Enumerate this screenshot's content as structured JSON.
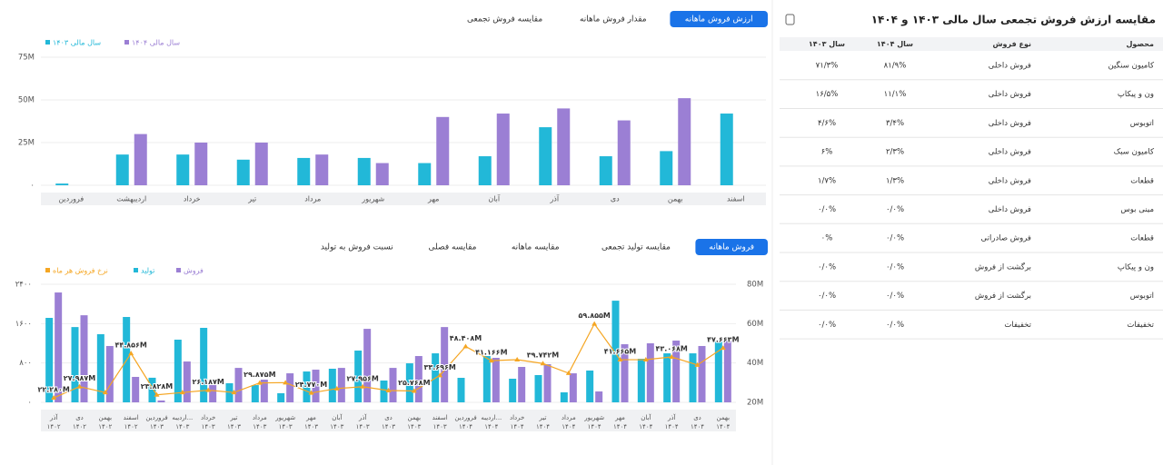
{
  "title": "مقایسه ارزش فروش تجمعی سال مالی ۱۴۰۳ و ۱۴۰۴",
  "top_tabs": [
    "ارزش فروش ماهانه",
    "مقدار فروش ماهانه",
    "مقایسه فروش تجمعی"
  ],
  "bottom_tabs": [
    "فروش ماهانه",
    "مقایسه تولید تجمعی",
    "مقایسه ماهانه",
    "مقایسه فصلی",
    "نسبت فروش به تولید"
  ],
  "table": {
    "header": [
      "محصول",
      "نوع فروش",
      "سال ۱۴۰۴",
      "سال ۱۴۰۳"
    ],
    "rows": [
      [
        "کامیون سنگین",
        "فروش داخلی",
        "۸۱/۹%",
        "۷۱/۳%"
      ],
      [
        "ون و پیکاپ",
        "فروش داخلی",
        "۱۱/۱%",
        "۱۶/۵%"
      ],
      [
        "اتوبوس",
        "فروش داخلی",
        "۳/۴%",
        "۴/۶%"
      ],
      [
        "کامیون سبک",
        "فروش داخلی",
        "۲/۳%",
        "۶%"
      ],
      [
        "قطعات",
        "فروش داخلی",
        "۱/۳%",
        "۱/۷%"
      ],
      [
        "مینی بوس",
        "فروش داخلی",
        "۰/۰%",
        "۰/۰%"
      ],
      [
        "قطعات",
        "فروش صادراتی",
        "۰/۰%",
        "۰%"
      ],
      [
        "ون و پیکاپ",
        "برگشت از فروش",
        "۰/۰%",
        "۰/۰%"
      ],
      [
        "اتوبوس",
        "برگشت از فروش",
        "۰/۰%",
        "۰/۰%"
      ],
      [
        "تخفیفات",
        "تخفیفات",
        "۰/۰%",
        "۰/۰%"
      ]
    ]
  },
  "chart_data": [
    {
      "type": "bar",
      "categories": [
        "فروردین",
        "اردیبهشت",
        "خرداد",
        "تیر",
        "مرداد",
        "شهریور",
        "مهر",
        "آبان",
        "آذر",
        "دی",
        "بهمن",
        "اسفند"
      ],
      "series": [
        {
          "name": "سال مالی ۱۴۰۳",
          "color": "#22b8d8",
          "values": [
            1,
            18,
            18,
            15,
            16,
            16,
            13,
            17,
            34,
            17,
            20,
            42
          ]
        },
        {
          "name": "سال مالی ۱۴۰۴",
          "color": "#9b7fd4",
          "values": [
            0,
            30,
            25,
            25,
            18,
            13,
            40,
            42,
            45,
            38,
            51,
            null
          ]
        }
      ],
      "ylim": [
        0,
        75
      ],
      "yticks": [
        {
          "value": 0,
          "label": "۰"
        },
        {
          "value": 25,
          "label": "25M"
        },
        {
          "value": 50,
          "label": "50M"
        },
        {
          "value": 75,
          "label": "75M"
        }
      ],
      "grid": true
    },
    {
      "type": "combo",
      "categories": [
        [
          "آذر",
          "۱۴۰۲"
        ],
        [
          "دی",
          "۱۴۰۲"
        ],
        [
          "بهمن",
          "۱۴۰۲"
        ],
        [
          "اسفند",
          "۱۴۰۲"
        ],
        [
          "فروردین",
          "۱۴۰۳"
        ],
        [
          "اردیبه...",
          "۱۴۰۳"
        ],
        [
          "خرداد",
          "۱۴۰۳"
        ],
        [
          "تیر",
          "۱۴۰۳"
        ],
        [
          "مرداد",
          "۱۴۰۳"
        ],
        [
          "شهریور",
          "۱۴۰۳"
        ],
        [
          "مهر",
          "۱۴۰۳"
        ],
        [
          "آبان",
          "۱۴۰۳"
        ],
        [
          "آذر",
          "۱۴۰۳"
        ],
        [
          "دی",
          "۱۴۰۳"
        ],
        [
          "بهمن",
          "۱۴۰۳"
        ],
        [
          "اسفند",
          "۱۴۰۳"
        ],
        [
          "فروردین",
          "۱۴۰۴"
        ],
        [
          "اردیبه...",
          "۱۴۰۴"
        ],
        [
          "خرداد",
          "۱۴۰۴"
        ],
        [
          "تیر",
          "۱۴۰۴"
        ],
        [
          "مرداد",
          "۱۴۰۴"
        ],
        [
          "شهریور",
          "۱۴۰۴"
        ],
        [
          "مهر",
          "۱۴۰۴"
        ],
        [
          "آبان",
          "۱۴۰۴"
        ],
        [
          "آذر",
          "۱۴۰۴"
        ],
        [
          "دی",
          "۱۴۰۴"
        ],
        [
          "بهمن",
          "۱۴۰۴"
        ]
      ],
      "series": [
        {
          "name": "فروش",
          "color": "#9b7fd4",
          "values": [
            2233,
            1770,
            1145,
            517,
            37,
            830,
            350,
            700,
            461,
            590,
            664,
            700,
            1494,
            700,
            941,
            1530,
            null,
            904,
            720,
            775,
            590,
            221,
            1181,
            1200,
            1255,
            1145,
            1255
          ]
        },
        {
          "name": "تولید",
          "color": "#22b8d8",
          "values": [
            1717,
            1530,
            1385,
            1735,
            500,
            1274,
            1514,
            388,
            350,
            185,
            627,
            683,
            1052,
            443,
            793,
            996,
            498,
            941,
            480,
            554,
            203,
            646,
            2066,
            886,
            996,
            996,
            1236
          ]
        },
        {
          "name": "نرخ فروش هر ماه",
          "color": "#f5a623",
          "axis": "y2",
          "values": [
            22.28,
            27.987,
            25,
            44.856,
            23.828,
            25,
            26.187,
            25,
            29.875,
            30,
            24.77,
            27,
            27.956,
            26,
            25.768,
            33.696,
            48.408,
            41.166,
            41.7,
            39.742,
            34.8,
            59.855,
            41.665,
            41.7,
            43.068,
            39,
            47.663
          ],
          "value_labels": [
            "۲۲.۲۸۰M",
            "۲۷.۹۸۷M",
            null,
            "۴۴.۸۵۶M",
            "۲۳.۸۲۸M",
            null,
            "۲۶.۱۸۷M",
            null,
            "۲۹.۸۷۵M",
            null,
            "۲۴.۷۷۰M",
            null,
            "۲۷.۹۵۶M",
            null,
            "۲۵.۷۶۸M",
            "۳۳.۶۹۶M",
            "۴۸.۴۰۸M",
            "۴۱.۱۶۶M",
            null,
            "۳۹.۷۴۲M",
            null,
            "۵۹.۸۵۵M",
            "۴۱.۶۶۵M",
            null,
            "۴۳.۰۶۸M",
            null,
            "۴۷.۶۶۳M"
          ]
        }
      ],
      "ylim": [
        0,
        2400
      ],
      "yticks": [
        {
          "value": 0,
          "label": "۰"
        },
        {
          "value": 800,
          "label": "۸۰۰"
        },
        {
          "value": 1600,
          "label": "۱۶۰۰"
        },
        {
          "value": 2400,
          "label": "۲۴۰۰"
        }
      ],
      "y2lim": [
        20,
        80
      ],
      "y2ticks": [
        {
          "value": 20,
          "label": "20M"
        },
        {
          "value": 40,
          "label": "40M"
        },
        {
          "value": 60,
          "label": "60M"
        },
        {
          "value": 80,
          "label": "80M"
        }
      ],
      "grid": true
    }
  ]
}
